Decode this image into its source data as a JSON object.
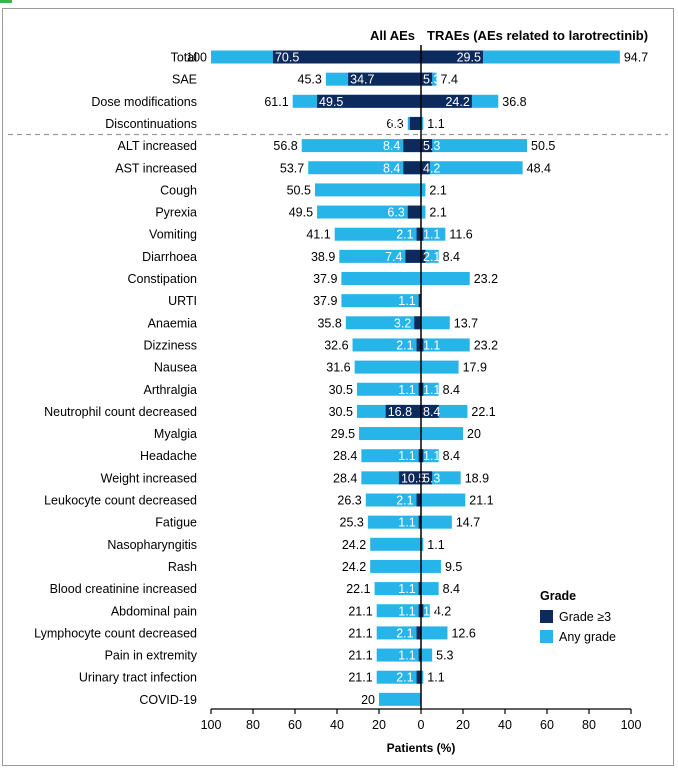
{
  "chart_data": {
    "type": "bar",
    "orientation": "horizontal-diverging",
    "left_panel_title": "All AEs",
    "right_panel_title": "TRAEs (AEs related to larotrectinib)",
    "xlabel": "Patients (%)",
    "xlim": [
      0,
      100
    ],
    "x_ticks": [
      "100",
      "80",
      "60",
      "40",
      "20",
      "0",
      "20",
      "40",
      "60",
      "80",
      "100"
    ],
    "legend": {
      "title": "Grade",
      "position": "bottom-right",
      "entries": [
        {
          "name": "Grade ≥3",
          "color": "#0d2a5c"
        },
        {
          "name": "Any grade",
          "color": "#27b4e8"
        }
      ]
    },
    "separator_after_category_index": 3,
    "series": [
      {
        "name": "All AEs – Any grade",
        "side": "left",
        "grade": "any"
      },
      {
        "name": "All AEs – Grade ≥3",
        "side": "left",
        "grade": "3plus"
      },
      {
        "name": "TRAEs – Any grade",
        "side": "right",
        "grade": "any"
      },
      {
        "name": "TRAEs – Grade ≥3",
        "side": "right",
        "grade": "3plus"
      }
    ],
    "rows": [
      {
        "category": "Total",
        "all_any": 100,
        "all_g3": 70.5,
        "tr_any": 94.7,
        "tr_g3": 29.5
      },
      {
        "category": "SAE",
        "all_any": 45.3,
        "all_g3": 34.7,
        "tr_any": 7.4,
        "tr_g3": 5.3
      },
      {
        "category": "Dose modifications",
        "all_any": 61.1,
        "all_g3": 49.5,
        "tr_any": 36.8,
        "tr_g3": 24.2
      },
      {
        "category": "Discontinuations",
        "all_any": 6.3,
        "all_g3": 5.3,
        "tr_any": 1.1,
        "tr_g3": null
      },
      {
        "category": "ALT increased",
        "all_any": 56.8,
        "all_g3": 8.4,
        "tr_any": 50.5,
        "tr_g3": 5.3
      },
      {
        "category": "AST increased",
        "all_any": 53.7,
        "all_g3": 8.4,
        "tr_any": 48.4,
        "tr_g3": 4.2
      },
      {
        "category": "Cough",
        "all_any": 50.5,
        "all_g3": null,
        "tr_any": 2.1,
        "tr_g3": null
      },
      {
        "category": "Pyrexia",
        "all_any": 49.5,
        "all_g3": 6.3,
        "tr_any": 2.1,
        "tr_g3": null
      },
      {
        "category": "Vomiting",
        "all_any": 41.1,
        "all_g3": 2.1,
        "tr_any": 11.6,
        "tr_g3": 1.1
      },
      {
        "category": "Diarrhoea",
        "all_any": 38.9,
        "all_g3": 7.4,
        "tr_any": 8.4,
        "tr_g3": 2.1
      },
      {
        "category": "Constipation",
        "all_any": 37.9,
        "all_g3": null,
        "tr_any": 23.2,
        "tr_g3": null
      },
      {
        "category": "URTI",
        "all_any": 37.9,
        "all_g3": 1.1,
        "tr_any": null,
        "tr_g3": null
      },
      {
        "category": "Anaemia",
        "all_any": 35.8,
        "all_g3": 3.2,
        "tr_any": 13.7,
        "tr_g3": null
      },
      {
        "category": "Dizziness",
        "all_any": 32.6,
        "all_g3": 2.1,
        "tr_any": 23.2,
        "tr_g3": 1.1
      },
      {
        "category": "Nausea",
        "all_any": 31.6,
        "all_g3": null,
        "tr_any": 17.9,
        "tr_g3": null
      },
      {
        "category": "Arthralgia",
        "all_any": 30.5,
        "all_g3": 1.1,
        "tr_any": 8.4,
        "tr_g3": 1.1
      },
      {
        "category": "Neutrophil count decreased",
        "all_any": 30.5,
        "all_g3": 16.8,
        "tr_any": 22.1,
        "tr_g3": 8.4
      },
      {
        "category": "Myalgia",
        "all_any": 29.5,
        "all_g3": null,
        "tr_any": 20.0,
        "tr_g3": null
      },
      {
        "category": "Headache",
        "all_any": 28.4,
        "all_g3": 1.1,
        "tr_any": 8.4,
        "tr_g3": 1.1
      },
      {
        "category": "Weight increased",
        "all_any": 28.4,
        "all_g3": 10.5,
        "tr_any": 18.9,
        "tr_g3": 5.3
      },
      {
        "category": "Leukocyte count decreased",
        "all_any": 26.3,
        "all_g3": 2.1,
        "tr_any": 21.1,
        "tr_g3": null
      },
      {
        "category": "Fatigue",
        "all_any": 25.3,
        "all_g3": 1.1,
        "tr_any": 14.7,
        "tr_g3": null
      },
      {
        "category": "Nasopharyngitis",
        "all_any": 24.2,
        "all_g3": null,
        "tr_any": 1.1,
        "tr_g3": null
      },
      {
        "category": "Rash",
        "all_any": 24.2,
        "all_g3": null,
        "tr_any": 9.5,
        "tr_g3": null
      },
      {
        "category": "Blood creatinine increased",
        "all_any": 22.1,
        "all_g3": 1.1,
        "tr_any": 8.4,
        "tr_g3": null
      },
      {
        "category": "Abdominal pain",
        "all_any": 21.1,
        "all_g3": 1.1,
        "tr_any": 4.2,
        "tr_g3": 1.1
      },
      {
        "category": "Lymphocyte count decreased",
        "all_any": 21.1,
        "all_g3": 2.1,
        "tr_any": 12.6,
        "tr_g3": null
      },
      {
        "category": "Pain in extremity",
        "all_any": 21.1,
        "all_g3": 1.1,
        "tr_any": 5.3,
        "tr_g3": null
      },
      {
        "category": "Urinary tract infection",
        "all_any": 21.1,
        "all_g3": 2.1,
        "tr_any": 1.1,
        "tr_g3": null
      },
      {
        "category": "COVID-19",
        "all_any": 20.0,
        "all_g3": null,
        "tr_any": null,
        "tr_g3": null
      }
    ]
  }
}
